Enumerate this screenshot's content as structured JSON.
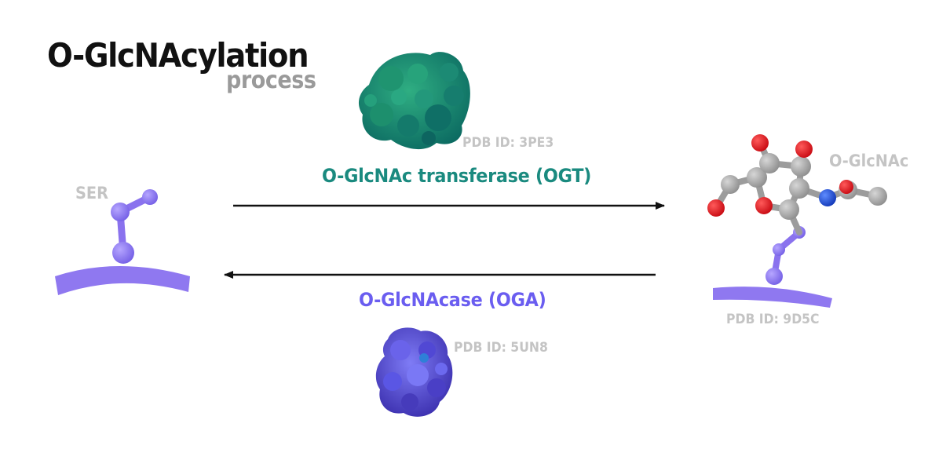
{
  "title": {
    "main": "O-GlcNAcylation",
    "sub": "process"
  },
  "enzymes": {
    "forward": {
      "name": "O-GlcNAc transferase (OGT)",
      "pdb": "PDB ID: 3PE3"
    },
    "reverse": {
      "name": "O-GlcNAcase (OGA)",
      "pdb": "PDB ID: 5UN8"
    }
  },
  "molecules": {
    "substrate": {
      "label": "SER"
    },
    "product": {
      "label": "O-GlcNAc",
      "pdb": "PDB ID: 9D5C"
    }
  },
  "colors": {
    "title": "#111111",
    "subtitle": "#9a9a9a",
    "pdb_label": "#c4c4c4",
    "ogt": "#1a8a7f",
    "oga": "#6a5df0",
    "serine": "#8f78f0",
    "carbon": "#a9a9a9",
    "oxygen": "#e8141c",
    "nitrogen": "#1f55e0",
    "arrow": "#111111"
  }
}
